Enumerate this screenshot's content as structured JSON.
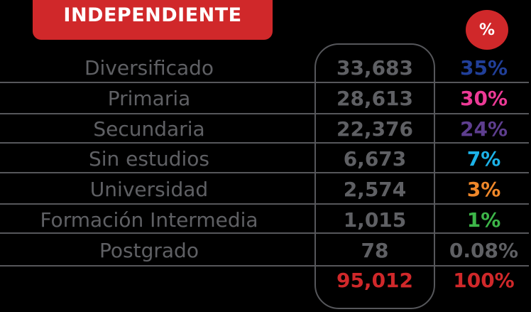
{
  "title": "INDEPENDIENTE",
  "pct_header": "%",
  "rows": [
    {
      "label": "Diversificado",
      "value": "33,683",
      "pct": "35%",
      "color": "#213f99"
    },
    {
      "label": "Primaria",
      "value": "28,613",
      "pct": "30%",
      "color": "#ec3a96"
    },
    {
      "label": "Secundaria",
      "value": "22,376",
      "pct": "24%",
      "color": "#5e3e8f"
    },
    {
      "label": "Sin estudios",
      "value": "6,673",
      "pct": "7%",
      "color": "#1cb2e8"
    },
    {
      "label": "Universidad",
      "value": "2,574",
      "pct": "3%",
      "color": "#f0882a"
    },
    {
      "label": "Formación Intermedia",
      "value": "1,015",
      "pct": "1%",
      "color": "#3db649"
    },
    {
      "label": "Postgrado",
      "value": "78",
      "pct": "0.08%",
      "color": "#5f6064"
    }
  ],
  "total": {
    "value": "95,012",
    "pct": "100%",
    "color": "#d0282a"
  }
}
